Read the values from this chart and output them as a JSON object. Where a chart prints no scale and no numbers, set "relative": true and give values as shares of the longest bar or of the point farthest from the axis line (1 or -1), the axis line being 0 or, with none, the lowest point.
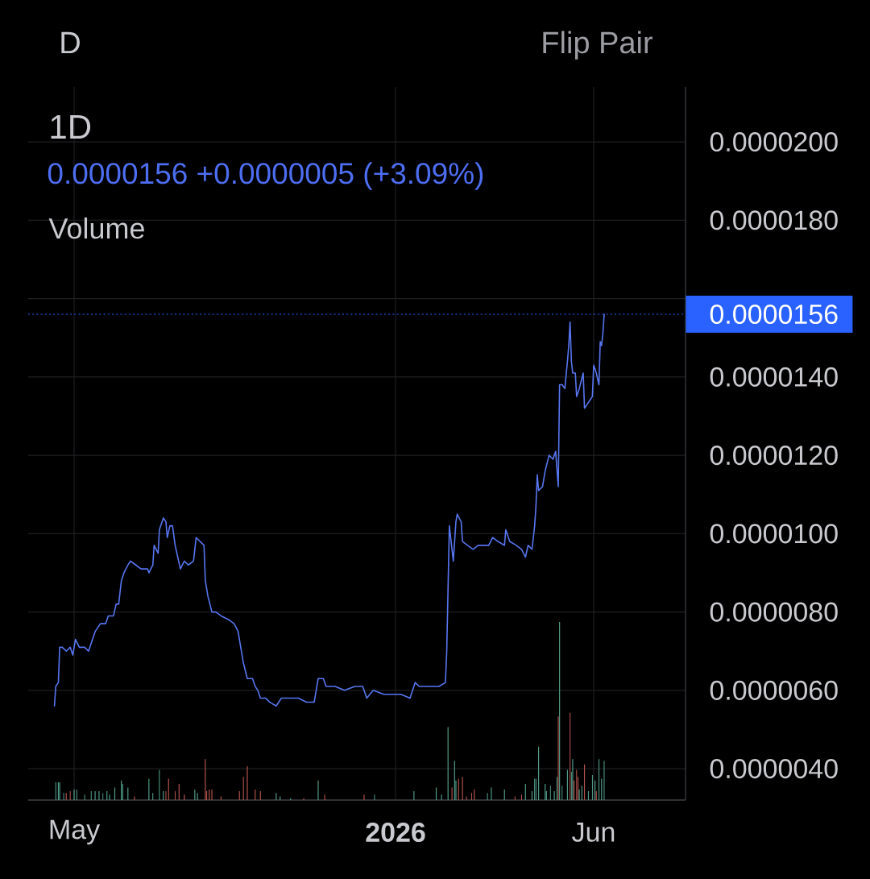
{
  "chart_data": [
    {
      "type": "line",
      "title": "1D",
      "subtitle": "0.0000156 +0.0000005 (+3.09%)",
      "annotations": [
        "D",
        "Flip Pair"
      ],
      "x": [
        "2025-04-16",
        "2025-04-17",
        "2025-04-19",
        "2025-04-20",
        "2025-04-22",
        "2025-04-25",
        "2025-04-28",
        "2025-04-30",
        "2025-05-02",
        "2025-05-05",
        "2025-05-09",
        "2025-05-12",
        "2025-05-14",
        "2025-05-17",
        "2025-05-21",
        "2025-05-25",
        "2025-05-27",
        "2025-05-31",
        "2025-06-02",
        "2025-06-04",
        "2025-06-06",
        "2025-06-08",
        "2025-06-11",
        "2025-06-13",
        "2025-06-17",
        "2025-06-21",
        "2025-06-26",
        "2025-06-27",
        "2025-06-30",
        "2025-07-01",
        "2025-07-04",
        "2025-07-05",
        "2025-07-08",
        "2025-07-10",
        "2025-07-11",
        "2025-07-13",
        "2025-07-15",
        "2025-07-17",
        "2025-07-19",
        "2025-07-21",
        "2025-07-24",
        "2025-07-27",
        "2025-07-31",
        "2025-08-02",
        "2025-08-05",
        "2025-08-08",
        "2025-08-09",
        "2025-08-11",
        "2025-08-14",
        "2025-08-17",
        "2025-08-21",
        "2025-08-27",
        "2025-08-31",
        "2025-09-03",
        "2025-09-05",
        "2025-09-07",
        "2025-09-10",
        "2025-09-14",
        "2025-09-16",
        "2025-09-18",
        "2025-09-20",
        "2025-09-24",
        "2025-09-27",
        "2025-10-02",
        "2025-10-06",
        "2025-10-11",
        "2025-10-19",
        "2025-10-25",
        "2025-10-31",
        "2025-11-03",
        "2025-11-07",
        "2025-11-09",
        "2025-11-16",
        "2025-11-23",
        "2025-12-01",
        "2025-12-07",
        "2025-12-10",
        "2025-12-15",
        "2025-12-23",
        "2026-01-05",
        "2026-01-12",
        "2026-01-16",
        "2026-01-19",
        "2026-01-27",
        "2026-02-03",
        "2026-02-08",
        "2026-02-09",
        "2026-02-11",
        "2026-02-12",
        "2026-02-14",
        "2026-02-16",
        "2026-02-17",
        "2026-02-20",
        "2026-02-21",
        "2026-02-25",
        "2026-03-01",
        "2026-03-05",
        "2026-03-11",
        "2026-03-13",
        "2026-03-16",
        "2026-03-20",
        "2026-03-25",
        "2026-03-26",
        "2026-03-29",
        "2026-04-03",
        "2026-04-07",
        "2026-04-10",
        "2026-04-12",
        "2026-04-15",
        "2026-04-17",
        "2026-04-18",
        "2026-04-19",
        "2026-04-20",
        "2026-04-23",
        "2026-04-25",
        "2026-04-28",
        "2026-05-01",
        "2026-05-03",
        "2026-05-05",
        "2026-05-06",
        "2026-05-08",
        "2026-05-10",
        "2026-05-12",
        "2026-05-13",
        "2026-05-14",
        "2026-05-15",
        "2026-05-16",
        "2026-05-18",
        "2026-05-19",
        "2026-05-21",
        "2026-05-24",
        "2026-05-25",
        "2026-05-27",
        "2026-05-29",
        "2026-05-31",
        "2026-06-01",
        "2026-06-03",
        "2026-06-05",
        "2026-06-06",
        "2026-06-07",
        "2026-06-08",
        "2026-06-09"
      ],
      "values": [
        5.6e-06,
        6.1e-06,
        6.2e-06,
        7.1e-06,
        7.1e-06,
        7e-06,
        7.1e-06,
        6.9e-06,
        7.3e-06,
        7.1e-06,
        7.1e-06,
        7e-06,
        7.2e-06,
        7.5e-06,
        7.7e-06,
        7.7e-06,
        7.9e-06,
        7.9e-06,
        8.2e-06,
        8.2e-06,
        8.8e-06,
        9e-06,
        9.2e-06,
        9.3e-06,
        9.2e-06,
        9.1e-06,
        9.1e-06,
        9e-06,
        9.2e-06,
        9.7e-06,
        9.5e-06,
        1.01e-05,
        1.04e-05,
        1.03e-05,
        9.9e-06,
        1.02e-05,
        1.02e-05,
        9.7e-06,
        9.4e-06,
        9.1e-06,
        9.3e-06,
        9.2e-06,
        9.3e-06,
        9.9e-06,
        9.8e-06,
        9.7e-06,
        8.8e-06,
        8.4e-06,
        8e-06,
        8e-06,
        7.9e-06,
        7.8e-06,
        7.7e-06,
        7.5e-06,
        7.1e-06,
        6.7e-06,
        6.3e-06,
        6.3e-06,
        6.1e-06,
        6e-06,
        5.8e-06,
        5.8e-06,
        5.7e-06,
        5.6e-06,
        5.8e-06,
        5.8e-06,
        5.8e-06,
        5.7e-06,
        5.7e-06,
        6.3e-06,
        6.3e-06,
        6.1e-06,
        6.1e-06,
        6e-06,
        6.1e-06,
        6.1e-06,
        5.8e-06,
        6e-06,
        5.9e-06,
        5.9e-06,
        5.8e-06,
        6.2e-06,
        6.1e-06,
        6.1e-06,
        6.1e-06,
        6.2e-06,
        7e-06,
        1.02e-05,
        9.9e-06,
        9.3e-06,
        1.03e-05,
        1.05e-05,
        1.03e-05,
        9.8e-06,
        9.7e-06,
        9.6e-06,
        9.7e-06,
        9.7e-06,
        9.7e-06,
        9.9e-06,
        9.8e-06,
        9.7e-06,
        1.01e-05,
        9.8e-06,
        9.7e-06,
        9.6e-06,
        9.4e-06,
        9.7e-06,
        9.6e-06,
        1.02e-05,
        1.07e-05,
        1.15e-05,
        1.11e-05,
        1.12e-05,
        1.16e-05,
        1.2e-05,
        1.19e-05,
        1.21e-05,
        1.12e-05,
        1.38e-05,
        1.38e-05,
        1.37e-05,
        1.44e-05,
        1.48e-05,
        1.54e-05,
        1.44e-05,
        1.41e-05,
        1.41e-05,
        1.35e-05,
        1.37e-05,
        1.41e-05,
        1.32e-05,
        1.33e-05,
        1.34e-05,
        1.35e-05,
        1.43e-05,
        1.41e-05,
        1.38e-05,
        1.49e-05,
        1.48e-05,
        1.51e-05,
        1.56e-05
      ],
      "color": "#5876f0",
      "xlim": [
        "2025-03-27",
        "2026-08-10"
      ],
      "xticks": [
        {
          "value": "2025-05-01",
          "label": "May"
        },
        {
          "value": "2026-01-01",
          "label": "2026"
        },
        {
          "value": "2026-06-01",
          "label": "Jun"
        }
      ],
      "ylim": [
        3.2e-06,
        2.14e-05
      ],
      "yticks": [
        {
          "value": 4e-06,
          "label": "0.0000040"
        },
        {
          "value": 6e-06,
          "label": "0.0000060"
        },
        {
          "value": 8e-06,
          "label": "0.0000080"
        },
        {
          "value": 1e-05,
          "label": "0.0000100"
        },
        {
          "value": 1.2e-05,
          "label": "0.0000120"
        },
        {
          "value": 1.4e-05,
          "label": "0.0000140"
        },
        {
          "value": 1.6e-05,
          "label": null
        },
        {
          "value": 1.8e-05,
          "label": "0.0000180"
        },
        {
          "value": 2e-05,
          "label": "0.0000200"
        }
      ],
      "grid": true,
      "ref_lines": [
        {
          "axis": "y",
          "value": 1.56e-05,
          "label": "0.0000156",
          "color": "#2962ff",
          "line_style": "dotted"
        }
      ]
    },
    {
      "type": "bar",
      "title": "Volume",
      "relative": true,
      "x": [
        "2025-04-17",
        "2025-04-19",
        "2025-04-20",
        "2025-04-23",
        "2025-04-25",
        "2025-04-28",
        "2025-05-01",
        "2025-05-03",
        "2025-05-09",
        "2025-05-14",
        "2025-05-17",
        "2025-05-20",
        "2025-05-23",
        "2025-05-26",
        "2025-05-28",
        "2025-06-01",
        "2025-06-06",
        "2025-06-07",
        "2025-06-11",
        "2025-06-16",
        "2025-06-27",
        "2025-06-30",
        "2025-07-05",
        "2025-07-08",
        "2025-07-10",
        "2025-07-12",
        "2025-07-17",
        "2025-07-20",
        "2025-07-24",
        "2025-08-01",
        "2025-08-03",
        "2025-08-09",
        "2025-08-10",
        "2025-08-12",
        "2025-08-14",
        "2025-08-21",
        "2025-09-04",
        "2025-09-07",
        "2025-09-10",
        "2025-09-16",
        "2025-09-20",
        "2025-10-02",
        "2025-10-05",
        "2025-10-13",
        "2025-10-23",
        "2025-11-03",
        "2025-11-08",
        "2025-12-08",
        "2025-12-16",
        "2026-01-15",
        "2026-02-01",
        "2026-02-05",
        "2026-02-10",
        "2026-02-13",
        "2026-02-15",
        "2026-02-16",
        "2026-02-18",
        "2026-02-21",
        "2026-02-24",
        "2026-02-28",
        "2026-03-02",
        "2026-03-12",
        "2026-03-15",
        "2026-03-25",
        "2026-04-02",
        "2026-04-07",
        "2026-04-10",
        "2026-04-15",
        "2026-04-17",
        "2026-04-18",
        "2026-04-20",
        "2026-04-25",
        "2026-04-26",
        "2026-04-29",
        "2026-05-02",
        "2026-05-04",
        "2026-05-05",
        "2026-05-06",
        "2026-05-08",
        "2026-05-12",
        "2026-05-14",
        "2026-05-15",
        "2026-05-16",
        "2026-05-17",
        "2026-05-19",
        "2026-05-20",
        "2026-05-21",
        "2026-05-23",
        "2026-05-25",
        "2026-05-28",
        "2026-05-31",
        "2026-06-02",
        "2026-06-03",
        "2026-06-05",
        "2026-06-07",
        "2026-06-09"
      ],
      "values": [
        0.1,
        0.1,
        0.1,
        0.04,
        0.04,
        0.05,
        0.06,
        0.06,
        0.03,
        0.05,
        0.05,
        0.05,
        0.04,
        0.05,
        0.03,
        0.07,
        0.11,
        0.09,
        0.07,
        0.02,
        0.12,
        0.04,
        0.17,
        0.05,
        0.05,
        0.12,
        0.05,
        0.09,
        0.03,
        0.06,
        0.04,
        0.23,
        0.05,
        0.06,
        0.06,
        0.02,
        0.05,
        0.13,
        0.19,
        0.06,
        0.05,
        0.04,
        0.02,
        0.01,
        0.01,
        0.11,
        0.03,
        0.03,
        0.03,
        0.05,
        0.07,
        0.03,
        0.41,
        0.07,
        0.22,
        0.11,
        0.12,
        0.13,
        0.02,
        0.04,
        0.06,
        0.04,
        0.07,
        0.06,
        0.02,
        0.03,
        0.09,
        0.05,
        0.12,
        0.12,
        0.3,
        0.09,
        0.05,
        0.08,
        0.05,
        0.13,
        0.47,
        1,
        0.08,
        0.17,
        0.49,
        0.16,
        0.23,
        0.11,
        0.17,
        0.13,
        0.06,
        0.08,
        0.2,
        0.05,
        0.14,
        0.11,
        0.05,
        0.23,
        0.12,
        0.22
      ],
      "colors": [
        "#4f9a86",
        "#4f9a86",
        "#4f9a86",
        "#4f9a86",
        "#b0514c",
        "#b0514c",
        "#4f9a86",
        "#4f9a86",
        "#4f9a86",
        "#4f9a86",
        "#4f9a86",
        "#4f9a86",
        "#4f9a86",
        "#4f9a86",
        "#4f9a86",
        "#4f9a86",
        "#4f9a86",
        "#4f9a86",
        "#4f9a86",
        "#b0514c",
        "#4f9a86",
        "#4f9a86",
        "#4f9a86",
        "#4f9a86",
        "#b0514c",
        "#b0514c",
        "#b0514c",
        "#b0514c",
        "#b0514c",
        "#4f9a86",
        "#4f9a86",
        "#b0514c",
        "#b0514c",
        "#b0514c",
        "#b0514c",
        "#b0514c",
        "#b0514c",
        "#b0514c",
        "#b0514c",
        "#b0514c",
        "#b0514c",
        "#4f9a86",
        "#4f9a86",
        "#4f9a86",
        "#b0514c",
        "#4f9a86",
        "#b0514c",
        "#b0514c",
        "#4f9a86",
        "#4f9a86",
        "#4f9a86",
        "#4f9a86",
        "#4f9a86",
        "#b0514c",
        "#4f9a86",
        "#4f9a86",
        "#b0514c",
        "#b0514c",
        "#b0514c",
        "#b0514c",
        "#b0514c",
        "#4f9a86",
        "#4f9a86",
        "#4f9a86",
        "#b0514c",
        "#b0514c",
        "#4f9a86",
        "#4f9a86",
        "#4f9a86",
        "#4f9a86",
        "#4f9a86",
        "#4f9a86",
        "#4f9a86",
        "#4f9a86",
        "#4f9a86",
        "#4f9a86",
        "#b0514c",
        "#4f9a86",
        "#4f9a86",
        "#4f9a86",
        "#b0514c",
        "#4f9a86",
        "#4f9a86",
        "#b0514c",
        "#b0514c",
        "#b0514c",
        "#4f9a86",
        "#4f9a86",
        "#b0514c",
        "#4f9a86",
        "#4f9a86",
        "#4f9a86",
        "#b0514c",
        "#4f9a86",
        "#4f9a86",
        "#4f9a86"
      ],
      "xlim": [
        "2025-03-27",
        "2026-08-10"
      ]
    }
  ]
}
